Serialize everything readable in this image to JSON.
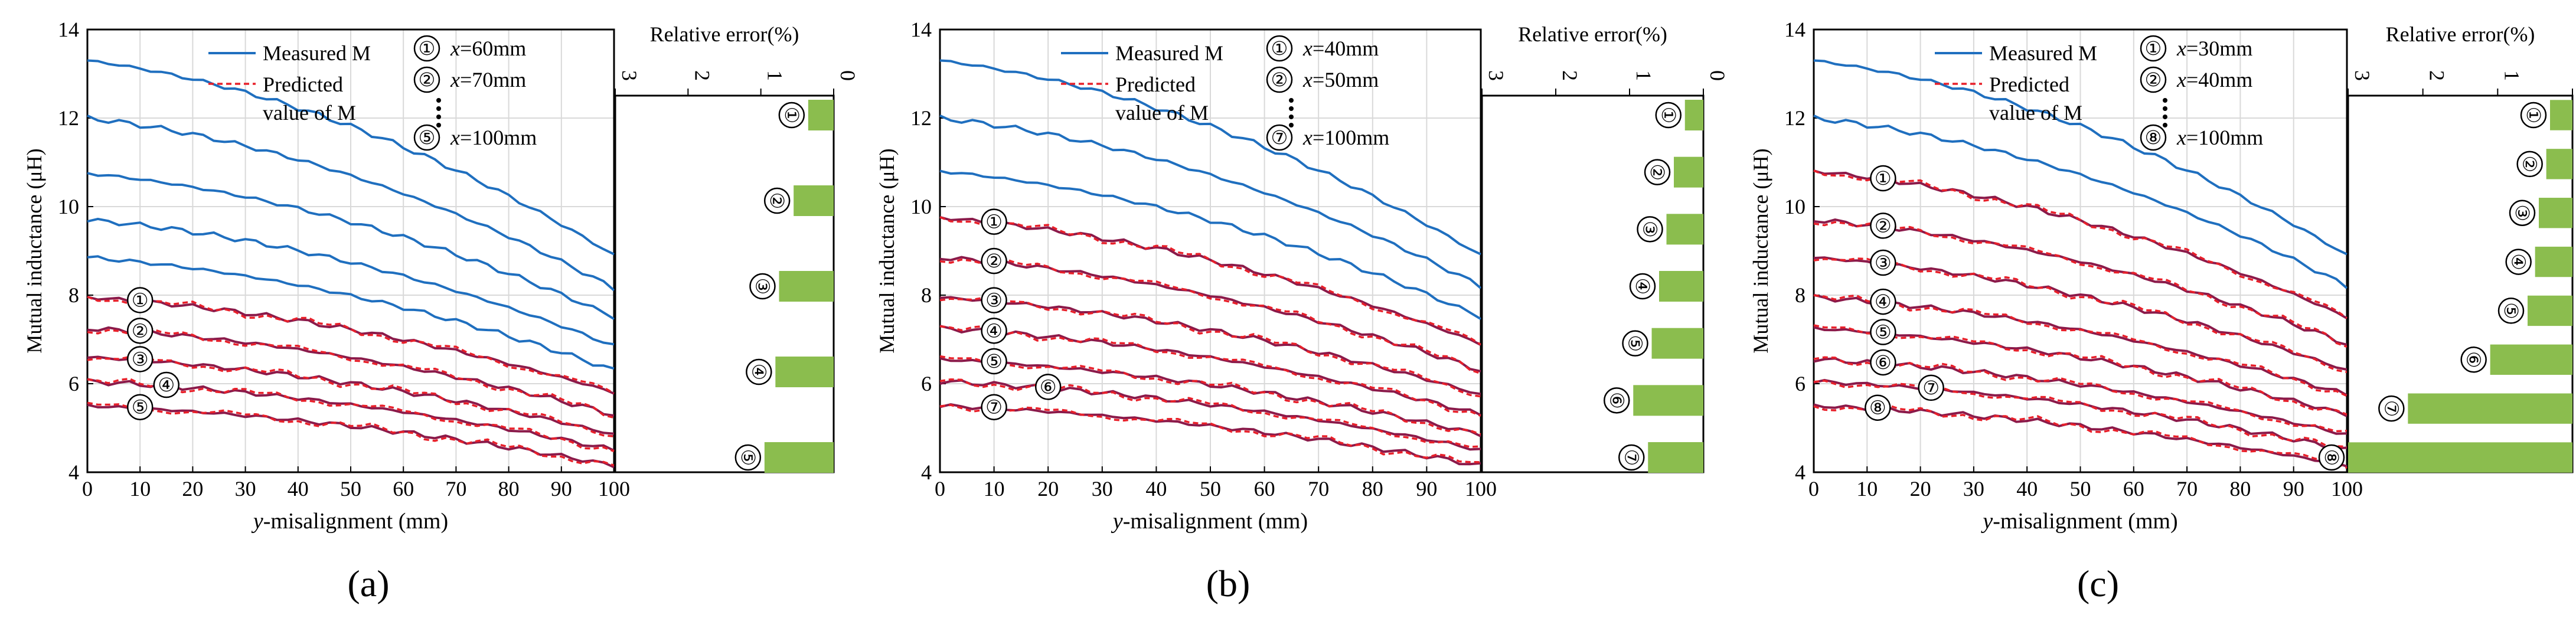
{
  "figure": {
    "measured_label": "Measured M",
    "predicted_label_line1": "Predicted",
    "predicted_label_line2": "value of M",
    "ylabel": "Mutual inductance (μH)",
    "xlabel_var": "y",
    "xlabel_rest": "-misalignment (mm)",
    "error_title": "Relative error(%)",
    "colors": {
      "measured": "#1f6fbf",
      "predicted": "#e8202a",
      "overlap": "#8b1a4a",
      "bar": "#8bbd4e",
      "grid": "#d9d9d9"
    }
  },
  "chart_data": [
    {
      "type": "line",
      "panel_label": "(a)",
      "xlabel": "y-misalignment (mm)",
      "ylabel": "Mutual inductance (μH)",
      "xlim": [
        0,
        100
      ],
      "ylim": [
        4,
        14
      ],
      "xticks": [
        0,
        10,
        20,
        30,
        40,
        50,
        60,
        70,
        80,
        90,
        100
      ],
      "yticks": [
        4,
        6,
        8,
        10,
        12,
        14
      ],
      "legend_x_lines": [
        {
          "mark": "①",
          "var": "x",
          "text": "=60mm"
        },
        {
          "mark": "②",
          "var": "x",
          "text": "=70mm"
        },
        {
          "mark": "⑤",
          "var": "x",
          "text": "=100mm"
        }
      ],
      "measured_upper": [
        {
          "name": "Measured x=10mm",
          "start": 13.3,
          "end": 8.9
        },
        {
          "name": "Measured x=20mm",
          "start": 12.0,
          "end": 8.15
        },
        {
          "name": "Measured x=30mm",
          "start": 10.75,
          "end": 7.5
        },
        {
          "name": "Measured x=40mm",
          "start": 9.7,
          "end": 6.85
        },
        {
          "name": "Measured x=50mm",
          "start": 8.85,
          "end": 6.3
        }
      ],
      "predicted_pairs": [
        {
          "id": "①",
          "x_pos": 10,
          "start": 7.95,
          "end": 5.8
        },
        {
          "id": "②",
          "x_pos": 10,
          "start": 7.25,
          "end": 5.3
        },
        {
          "id": "③",
          "x_pos": 10,
          "start": 6.6,
          "end": 4.85
        },
        {
          "id": "④",
          "x_pos": 15,
          "start": 6.05,
          "end": 4.5
        },
        {
          "id": "⑤",
          "x_pos": 10,
          "start": 5.5,
          "end": 4.15
        }
      ],
      "relative_error": {
        "title": "Relative error(%)",
        "axis_ticks": [
          "3",
          "2",
          "1",
          "0"
        ],
        "range": [
          0,
          3
        ],
        "bars": [
          {
            "id": "①",
            "value": 0.35
          },
          {
            "id": "②",
            "value": 0.55
          },
          {
            "id": "③",
            "value": 0.75
          },
          {
            "id": "④",
            "value": 0.8
          },
          {
            "id": "⑤",
            "value": 0.95
          }
        ]
      }
    },
    {
      "type": "line",
      "panel_label": "(b)",
      "xlabel": "y-misalignment (mm)",
      "ylabel": "Mutual inductance (μH)",
      "xlim": [
        0,
        100
      ],
      "ylim": [
        4,
        14
      ],
      "xticks": [
        0,
        10,
        20,
        30,
        40,
        50,
        60,
        70,
        80,
        90,
        100
      ],
      "yticks": [
        4,
        6,
        8,
        10,
        12,
        14
      ],
      "legend_x_lines": [
        {
          "mark": "①",
          "var": "x",
          "text": "=40mm"
        },
        {
          "mark": "②",
          "var": "x",
          "text": "=50mm"
        },
        {
          "mark": "⑦",
          "var": "x",
          "text": "=100mm"
        }
      ],
      "measured_upper": [
        {
          "name": "Measured x=10mm",
          "start": 13.3,
          "end": 8.9
        },
        {
          "name": "Measured x=20mm",
          "start": 12.0,
          "end": 8.2
        },
        {
          "name": "Measured x=30mm",
          "start": 10.8,
          "end": 7.5
        }
      ],
      "predicted_pairs": [
        {
          "id": "①",
          "x_pos": 10,
          "start": 9.75,
          "end": 6.9
        },
        {
          "id": "②",
          "x_pos": 10,
          "start": 8.85,
          "end": 6.3
        },
        {
          "id": "③",
          "x_pos": 10,
          "start": 7.95,
          "end": 5.75
        },
        {
          "id": "④",
          "x_pos": 10,
          "start": 7.25,
          "end": 5.3
        },
        {
          "id": "⑤",
          "x_pos": 10,
          "start": 6.55,
          "end": 4.85
        },
        {
          "id": "⑥",
          "x_pos": 20,
          "start": 6.05,
          "end": 4.5
        },
        {
          "id": "⑦",
          "x_pos": 10,
          "start": 5.5,
          "end": 4.15
        }
      ],
      "relative_error": {
        "title": "Relative error(%)",
        "axis_ticks": [
          "3",
          "2",
          "1",
          "0"
        ],
        "range": [
          0,
          3
        ],
        "bars": [
          {
            "id": "①",
            "value": 0.25
          },
          {
            "id": "②",
            "value": 0.4
          },
          {
            "id": "③",
            "value": 0.5
          },
          {
            "id": "④",
            "value": 0.6
          },
          {
            "id": "⑤",
            "value": 0.7
          },
          {
            "id": "⑥",
            "value": 0.95
          },
          {
            "id": "⑦",
            "value": 0.75
          }
        ]
      }
    },
    {
      "type": "line",
      "panel_label": "(c)",
      "xlabel": "y-misalignment (mm)",
      "ylabel": "Mutual inductance (μH)",
      "xlim": [
        0,
        100
      ],
      "ylim": [
        4,
        14
      ],
      "xticks": [
        0,
        10,
        20,
        30,
        40,
        50,
        60,
        70,
        80,
        90,
        100
      ],
      "yticks": [
        4,
        6,
        8,
        10,
        12,
        14
      ],
      "legend_x_lines": [
        {
          "mark": "①",
          "var": "x",
          "text": "=30mm"
        },
        {
          "mark": "②",
          "var": "x",
          "text": "=40mm"
        },
        {
          "mark": "⑧",
          "var": "x",
          "text": "=100mm"
        }
      ],
      "measured_upper": [
        {
          "name": "Measured x=10mm",
          "start": 13.3,
          "end": 8.9
        },
        {
          "name": "Measured x=20mm",
          "start": 12.0,
          "end": 8.2
        }
      ],
      "predicted_pairs": [
        {
          "id": "①",
          "x_pos": 13,
          "start": 10.8,
          "end": 7.5
        },
        {
          "id": "②",
          "x_pos": 13,
          "start": 9.7,
          "end": 6.9
        },
        {
          "id": "③",
          "x_pos": 13,
          "start": 8.85,
          "end": 6.3
        },
        {
          "id": "④",
          "x_pos": 13,
          "start": 7.95,
          "end": 5.75
        },
        {
          "id": "⑤",
          "x_pos": 13,
          "start": 7.25,
          "end": 5.3
        },
        {
          "id": "⑥",
          "x_pos": 13,
          "start": 6.55,
          "end": 4.85
        },
        {
          "id": "⑦",
          "x_pos": 22,
          "start": 6.05,
          "end": 4.5
        },
        {
          "id": "⑧",
          "x_pos": 12,
          "start": 5.5,
          "end": 4.15
        }
      ],
      "relative_error": {
        "title": "Relative error(%)",
        "axis_ticks": [
          "3",
          "2",
          "1",
          "0"
        ],
        "range": [
          0,
          3
        ],
        "bars": [
          {
            "id": "①",
            "value": 0.3
          },
          {
            "id": "②",
            "value": 0.35
          },
          {
            "id": "③",
            "value": 0.45
          },
          {
            "id": "④",
            "value": 0.5
          },
          {
            "id": "⑤",
            "value": 0.6
          },
          {
            "id": "⑥",
            "value": 1.1
          },
          {
            "id": "⑦",
            "value": 2.2
          },
          {
            "id": "⑧",
            "value": 3.0
          }
        ]
      }
    }
  ]
}
